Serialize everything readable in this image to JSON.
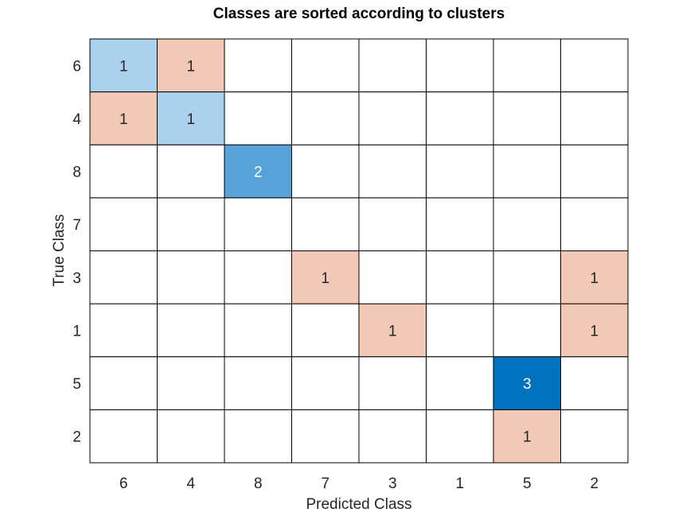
{
  "chart_data": {
    "type": "heatmap",
    "title": "Classes are sorted according to clusters",
    "xlabel": "Predicted Class",
    "ylabel": "True Class",
    "x_categories": [
      "6",
      "4",
      "8",
      "7",
      "3",
      "1",
      "5",
      "2"
    ],
    "y_categories": [
      "6",
      "4",
      "8",
      "7",
      "3",
      "1",
      "5",
      "2"
    ],
    "matrix": [
      [
        1,
        1,
        0,
        0,
        0,
        0,
        0,
        0
      ],
      [
        1,
        1,
        0,
        0,
        0,
        0,
        0,
        0
      ],
      [
        0,
        0,
        2,
        0,
        0,
        0,
        0,
        0
      ],
      [
        0,
        0,
        0,
        0,
        0,
        0,
        0,
        0
      ],
      [
        0,
        0,
        0,
        1,
        0,
        0,
        0,
        1
      ],
      [
        0,
        0,
        0,
        0,
        1,
        0,
        0,
        1
      ],
      [
        0,
        0,
        0,
        0,
        0,
        0,
        3,
        0
      ],
      [
        0,
        0,
        0,
        0,
        0,
        0,
        1,
        0
      ]
    ],
    "colors": {
      "off_diagonal": "#f2c8b6",
      "diagonal_1": "#abd1ec",
      "diagonal_2": "#56a2d9",
      "diagonal_3": "#0072bd",
      "empty": "#ffffff",
      "grid": "#000000",
      "dark_text": "#262626",
      "light_text": "#ffffff"
    }
  }
}
